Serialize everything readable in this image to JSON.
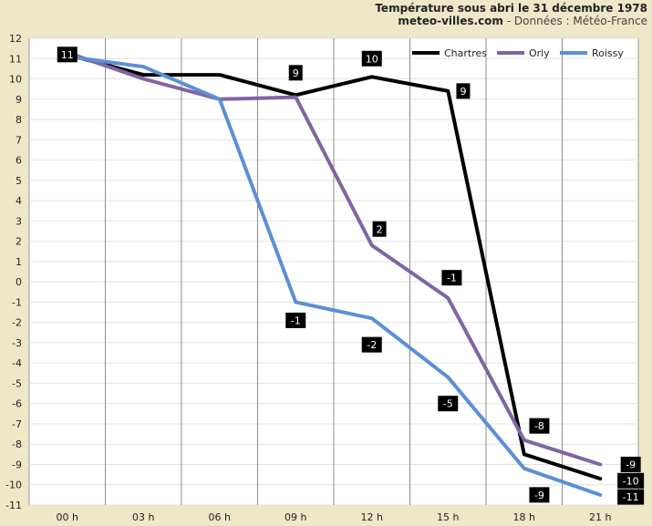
{
  "header": {
    "title": "Température sous abri le 31 décembre 1978",
    "site": "meteo-villes.com",
    "source": " - Données : Météo-France"
  },
  "colors": {
    "background": "#eee8c9",
    "plot_area": "#ffffff",
    "Chartres": "#000000",
    "Orly": "#8064a2",
    "Roissy": "#5b8fd6",
    "label_box": "#000000"
  },
  "chart_data": {
    "type": "line",
    "title": "Température sous abri le 31 décembre 1978",
    "xlabel": "",
    "ylabel": "",
    "categories": [
      "00 h",
      "03 h",
      "06 h",
      "09 h",
      "12 h",
      "15 h",
      "18 h",
      "21 h"
    ],
    "ylim": [
      -11,
      12
    ],
    "yticks": [
      12,
      11,
      10,
      9,
      8,
      7,
      6,
      5,
      4,
      3,
      2,
      1,
      0,
      -1,
      -2,
      -3,
      -4,
      -5,
      -6,
      -7,
      -8,
      -9,
      -10,
      -11
    ],
    "grid": true,
    "legend": "top-right",
    "series": [
      {
        "name": "Chartres",
        "x": [
          0,
          1,
          2,
          3,
          4,
          5,
          6,
          7
        ],
        "values": [
          11.2,
          10.2,
          10.2,
          9.2,
          10.1,
          9.4,
          -8.5,
          -9.7
        ]
      },
      {
        "name": "Orly",
        "x": [
          0,
          1,
          2,
          3,
          4,
          5,
          6,
          7
        ],
        "values": [
          11.3,
          10.0,
          9.0,
          9.1,
          1.8,
          -0.8,
          -7.8,
          -9.0
        ]
      },
      {
        "name": "Roissy",
        "x": [
          0,
          1,
          2,
          3,
          4,
          5,
          6,
          7
        ],
        "values": [
          11.1,
          10.6,
          9.0,
          -1.0,
          -1.8,
          -4.7,
          -9.2,
          -10.5
        ]
      }
    ],
    "data_labels": [
      {
        "text": "11",
        "x": 0,
        "y": 11.2
      },
      {
        "text": "9",
        "x": 3,
        "y": 10.3
      },
      {
        "text": "10",
        "x": 4,
        "y": 11.0
      },
      {
        "text": "9",
        "x": 5.2,
        "y": 9.4
      },
      {
        "text": "2",
        "x": 4.1,
        "y": 2.6
      },
      {
        "text": "-1",
        "x": 5.05,
        "y": 0.2
      },
      {
        "text": "-1",
        "x": 3.0,
        "y": -1.9
      },
      {
        "text": "-2",
        "x": 4.0,
        "y": -3.1
      },
      {
        "text": "-5",
        "x": 5.0,
        "y": -6.0
      },
      {
        "text": "-8",
        "x": 6.2,
        "y": -7.1
      },
      {
        "text": "-9",
        "x": 6.2,
        "y": -10.5
      },
      {
        "text": "-9",
        "x": 7.4,
        "y": -9.0
      },
      {
        "text": "-10",
        "x": 7.4,
        "y": -9.8
      },
      {
        "text": "-11",
        "x": 7.4,
        "y": -10.6
      }
    ]
  }
}
